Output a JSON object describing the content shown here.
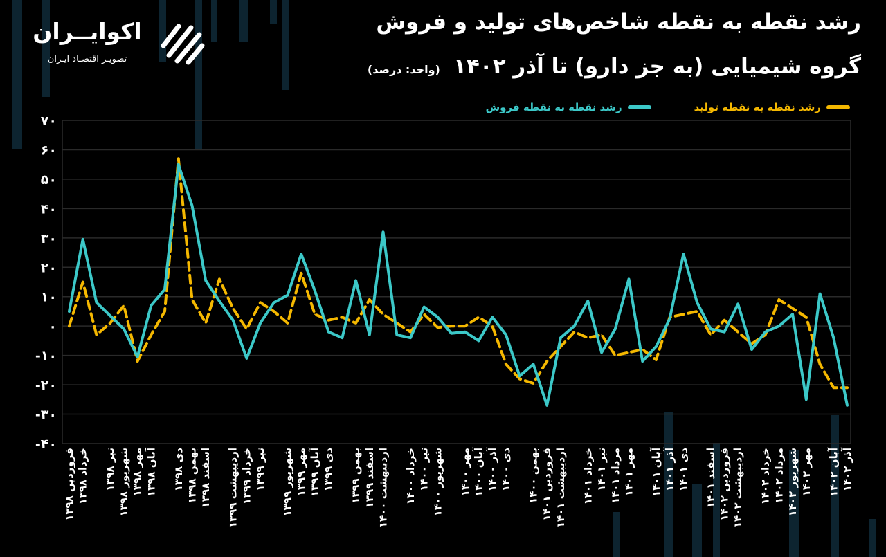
{
  "header": {
    "title_line1": "رشد نقطه به نقطه شاخص‌های تولید و فروش",
    "title_line2": "گروه شیمیایی (به جز دارو) تا آذر ۱۴۰۲",
    "unit": "(واحد: درصد)"
  },
  "brand": {
    "name": "اکوایــران",
    "tagline": "تصویـر اقتصـاد ایـران",
    "logo_icon": "ecoiran-logo-icon"
  },
  "colors": {
    "background": "#000000",
    "production": "#F5B800",
    "sales": "#3CC8C8",
    "grid": "#2a2a2a",
    "decor": "#0d2430"
  },
  "chart_data": {
    "type": "line",
    "title": "رشد نقطه به نقطه شاخص‌های تولید و فروش گروه شیمیایی (به جز دارو) تا آذر ۱۴۰۲",
    "xlabel": "",
    "ylabel": "",
    "ylim": [
      -40,
      70
    ],
    "yticks": [
      "۷۰",
      "۶۰",
      "۵۰",
      "۴۰",
      "۳۰",
      "۲۰",
      "۱۰",
      "۰",
      "-۱۰",
      "-۲۰",
      "-۳۰",
      "-۴۰"
    ],
    "grid": true,
    "legend_position": "top-right",
    "categories": [
      "فروردین ۱۳۹۸",
      "خرداد ۱۳۹۸",
      "تیر ۱۳۹۸",
      "شهریور ۱۳۹۸",
      "مهر ۱۳۹۸",
      "آبان ۱۳۹۸",
      "دی ۱۳۹۸",
      "بهمن ۱۳۹۸",
      "اسفند ۱۳۹۸",
      "اردیبهشت ۱۳۹۹",
      "خرداد ۱۳۹۹",
      "تیر ۱۳۹۹",
      "شهریور ۱۳۹۹",
      "مهر ۱۳۹۹",
      "آبان ۱۳۹۹",
      "دی ۱۳۹۹",
      "بهمن ۱۳۹۹",
      "اسفند ۱۳۹۹",
      "اردیبهشت ۱۴۰۰",
      "خرداد ۱۴۰۰",
      "تیر ۱۴۰۰",
      "شهریور ۱۴۰۰",
      "مهر ۱۴۰۰",
      "آبان ۱۴۰۰",
      "آذر ۱۴۰۰",
      "دی ۱۴۰۰",
      "بهمن ۱۴۰۰",
      "فروردین ۱۴۰۱",
      "اردیبهشت ۱۴۰۱",
      "خرداد ۱۴۰۱",
      "تیر ۱۴۰۱",
      "مرداد ۱۴۰۱",
      "مهر ۱۴۰۱",
      "آبان ۱۴۰۱",
      "آذر ۱۴۰۱",
      "دی ۱۴۰۱",
      "اسفند ۱۴۰۱",
      "فروردین ۱۴۰۲",
      "اردیبهشت ۱۴۰۲",
      "خرداد ۱۴۰۲",
      "مرداد ۱۴۰۲",
      "شهریور ۱۴۰۲",
      "مهر ۱۴۰۲",
      "آبان ۱۴۰۲",
      "آذر ۱۴۰۲"
    ],
    "x": [
      0,
      1,
      2,
      3,
      4,
      5,
      6,
      7,
      8,
      9,
      10,
      11,
      12,
      13,
      14,
      15,
      16,
      17,
      18,
      19,
      20,
      21,
      22,
      23,
      24,
      25,
      26,
      27,
      28,
      29,
      30,
      31,
      32,
      33,
      34,
      35,
      36,
      37,
      38,
      39,
      40,
      41,
      42,
      43,
      44,
      45,
      46,
      47,
      48,
      49,
      50,
      51,
      52,
      53,
      54,
      55,
      56,
      57
    ],
    "series": [
      {
        "name": "رشد نقطه به نقطه تولید",
        "color": "#F5B800",
        "dash": true,
        "values": [
          0,
          15,
          -3,
          1,
          7,
          -12,
          -3,
          5,
          57,
          9,
          1,
          16,
          6,
          -1,
          8,
          5,
          1,
          18,
          4,
          2,
          3,
          1,
          9,
          4,
          1,
          -2,
          4,
          -0.5,
          0,
          0,
          3,
          0,
          -13,
          -18,
          -19.5,
          -12,
          -7,
          -2,
          -4,
          -3,
          -10,
          -9,
          -8,
          -11.5,
          3,
          4,
          5,
          -3,
          2,
          -2,
          -6,
          -3,
          9,
          6,
          3,
          -13,
          -21,
          -21
        ]
      },
      {
        "name": "رشد نقطه به نقطه فروش",
        "color": "#3CC8C8",
        "dash": false,
        "values": [
          5,
          29.5,
          8,
          3.5,
          -1,
          -10.5,
          7,
          12.5,
          55,
          41,
          15.5,
          8.5,
          2,
          -11,
          1,
          8,
          10.5,
          24.5,
          12,
          -2,
          -4,
          15.5,
          -3,
          32,
          -3,
          -4,
          6.5,
          3,
          -2.5,
          -2,
          -5,
          3,
          -3,
          -17,
          -13,
          -27,
          -4,
          0,
          8.5,
          -9,
          -1,
          16,
          -12,
          -7,
          2.5,
          24.5,
          8,
          -1,
          -2,
          7.5,
          -8,
          -2,
          0,
          4,
          -25,
          11,
          -4,
          -27
        ]
      }
    ]
  }
}
